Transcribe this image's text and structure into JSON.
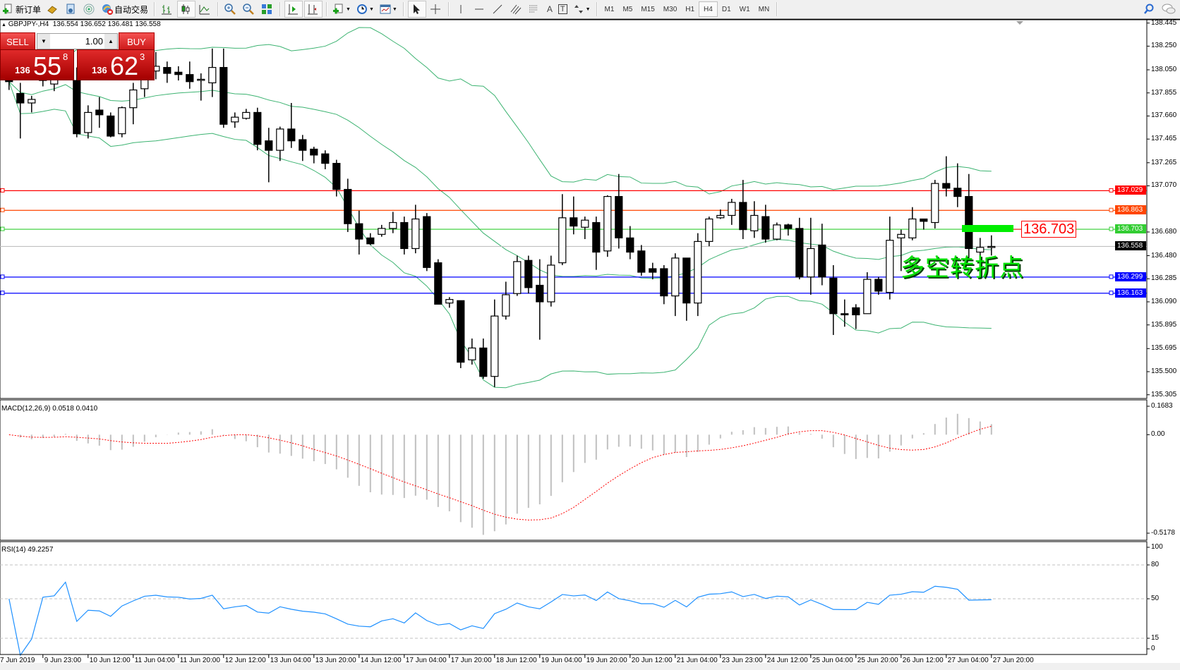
{
  "toolbar": {
    "new_order": "新订单",
    "auto_trading": "自动交易",
    "timeframes": [
      "M1",
      "M5",
      "M15",
      "M30",
      "H1",
      "H4",
      "D1",
      "W1",
      "MN"
    ],
    "active_timeframe": "H4",
    "text_tool": "A",
    "label_tool": "T"
  },
  "chart": {
    "symbol": "GBPJPY-,H4",
    "open": "136.554",
    "high": "136.652",
    "low": "136.481",
    "close": "136.558"
  },
  "trade_panel": {
    "sell_label": "SELL",
    "buy_label": "BUY",
    "lot": "1.00",
    "sell_price": {
      "prefix": "136",
      "main": "55",
      "sup": "8"
    },
    "buy_price": {
      "prefix": "136",
      "main": "62",
      "sup": "3"
    }
  },
  "annotation": {
    "text": "多空转折点",
    "price_label": "136.703",
    "rect_color": "#00ee00"
  },
  "chart_data": {
    "type": "candlestick",
    "symbol": "GBPJPY",
    "timeframe": "H4",
    "grid": false,
    "ylim": [
      135.305,
      138.445
    ],
    "price_ticks": [
      "138.445",
      "138.250",
      "138.050",
      "137.855",
      "137.660",
      "137.465",
      "137.265",
      "137.070",
      "136.680",
      "136.480",
      "136.285",
      "136.090",
      "135.895",
      "135.695",
      "135.500",
      "135.305"
    ],
    "time_labels": [
      "7 Jun 2019",
      "9 Jun 23:00",
      "10 Jun 12:00",
      "11 Jun 04:00",
      "11 Jun 20:00",
      "12 Jun 12:00",
      "13 Jun 04:00",
      "13 Jun 20:00",
      "14 Jun 12:00",
      "17 Jun 04:00",
      "17 Jun 20:00",
      "18 Jun 12:00",
      "19 Jun 04:00",
      "19 Jun 20:00",
      "20 Jun 12:00",
      "21 Jun 04:00",
      "23 Jun 23:00",
      "24 Jun 12:00",
      "25 Jun 04:00",
      "25 Jun 20:00",
      "26 Jun 12:00",
      "27 Jun 04:00",
      "27 Jun 20:00"
    ],
    "ohlc": [
      [
        137.96,
        138.1,
        137.88,
        137.95
      ],
      [
        137.85,
        137.94,
        137.47,
        137.77
      ],
      [
        137.77,
        137.83,
        137.69,
        137.8
      ],
      [
        138.01,
        138.07,
        137.91,
        137.96
      ],
      [
        137.93,
        138.03,
        137.87,
        137.97
      ],
      [
        138.01,
        138.15,
        137.99,
        138.1
      ],
      [
        137.96,
        138.07,
        137.48,
        137.51
      ],
      [
        137.52,
        137.75,
        137.47,
        137.69
      ],
      [
        137.71,
        137.82,
        137.56,
        137.67
      ],
      [
        137.66,
        137.69,
        137.48,
        137.49
      ],
      [
        137.51,
        137.74,
        137.48,
        137.73
      ],
      [
        137.73,
        137.94,
        137.59,
        137.88
      ],
      [
        137.89,
        138.13,
        137.82,
        138.04
      ],
      [
        138.04,
        138.2,
        137.97,
        138.08
      ],
      [
        138.07,
        138.12,
        137.94,
        138.02
      ],
      [
        138.03,
        138.08,
        137.96,
        138.01
      ],
      [
        138.01,
        138.12,
        137.89,
        137.95
      ],
      [
        137.97,
        138.02,
        137.79,
        137.97
      ],
      [
        137.94,
        138.23,
        137.82,
        138.07
      ],
      [
        138.07,
        138.23,
        137.56,
        137.59
      ],
      [
        137.61,
        137.69,
        137.56,
        137.65
      ],
      [
        137.64,
        137.72,
        137.63,
        137.69
      ],
      [
        137.69,
        137.73,
        137.37,
        137.42
      ],
      [
        137.45,
        137.56,
        137.1,
        137.37
      ],
      [
        137.37,
        137.57,
        137.28,
        137.55
      ],
      [
        137.55,
        137.77,
        137.39,
        137.45
      ],
      [
        137.46,
        137.5,
        137.28,
        137.37
      ],
      [
        137.38,
        137.4,
        137.26,
        137.33
      ],
      [
        137.34,
        137.37,
        137.21,
        137.26
      ],
      [
        137.26,
        137.29,
        136.98,
        137.04
      ],
      [
        137.04,
        137.13,
        136.68,
        136.75
      ],
      [
        136.75,
        136.86,
        136.49,
        136.62
      ],
      [
        136.63,
        136.67,
        136.57,
        136.58
      ],
      [
        136.66,
        136.74,
        136.64,
        136.71
      ],
      [
        136.71,
        136.85,
        136.67,
        136.76
      ],
      [
        136.76,
        136.81,
        136.49,
        136.54
      ],
      [
        136.54,
        136.91,
        136.5,
        136.79
      ],
      [
        136.81,
        136.84,
        136.35,
        136.38
      ],
      [
        136.42,
        136.45,
        136.07,
        136.07
      ],
      [
        136.08,
        136.13,
        136.04,
        136.11
      ],
      [
        136.1,
        136.1,
        135.53,
        135.58
      ],
      [
        135.6,
        135.78,
        135.56,
        135.7
      ],
      [
        135.7,
        135.78,
        135.44,
        135.46
      ],
      [
        135.46,
        136.11,
        135.37,
        135.97
      ],
      [
        135.97,
        136.26,
        135.94,
        136.15
      ],
      [
        136.16,
        136.48,
        136.14,
        136.43
      ],
      [
        136.44,
        136.48,
        136.16,
        136.21
      ],
      [
        136.23,
        136.45,
        135.77,
        136.09
      ],
      [
        136.09,
        136.48,
        136.05,
        136.4
      ],
      [
        136.42,
        137.0,
        136.4,
        136.8
      ],
      [
        136.8,
        136.98,
        136.66,
        136.73
      ],
      [
        136.72,
        136.81,
        136.62,
        136.78
      ],
      [
        136.76,
        136.81,
        136.36,
        136.51
      ],
      [
        136.52,
        136.99,
        136.47,
        136.98
      ],
      [
        136.98,
        137.17,
        136.54,
        136.63
      ],
      [
        136.63,
        136.73,
        136.45,
        136.51
      ],
      [
        136.52,
        136.57,
        136.31,
        136.34
      ],
      [
        136.37,
        136.42,
        136.28,
        136.34
      ],
      [
        136.37,
        136.4,
        136.07,
        136.14
      ],
      [
        136.14,
        136.5,
        135.97,
        136.46
      ],
      [
        136.46,
        136.46,
        135.93,
        136.08
      ],
      [
        136.08,
        136.67,
        135.97,
        136.6
      ],
      [
        136.6,
        136.81,
        136.56,
        136.79
      ],
      [
        136.8,
        136.87,
        136.79,
        136.82
      ],
      [
        136.82,
        136.96,
        136.74,
        136.93
      ],
      [
        136.93,
        137.12,
        136.62,
        136.7
      ],
      [
        136.69,
        136.94,
        136.63,
        136.82
      ],
      [
        136.81,
        136.91,
        136.59,
        136.62
      ],
      [
        136.62,
        136.76,
        136.61,
        136.74
      ],
      [
        136.74,
        136.75,
        136.65,
        136.71
      ],
      [
        136.71,
        136.8,
        136.28,
        136.3
      ],
      [
        136.3,
        136.8,
        136.15,
        136.54
      ],
      [
        136.57,
        136.75,
        136.23,
        136.3
      ],
      [
        136.29,
        136.4,
        135.81,
        135.99
      ],
      [
        135.99,
        136.11,
        135.88,
        135.98
      ],
      [
        136.04,
        136.07,
        135.86,
        135.98
      ],
      [
        135.99,
        136.34,
        135.99,
        136.28
      ],
      [
        136.28,
        136.3,
        136.15,
        136.18
      ],
      [
        136.17,
        136.81,
        136.11,
        136.61
      ],
      [
        136.63,
        136.7,
        136.35,
        136.66
      ],
      [
        136.63,
        136.89,
        136.61,
        136.79
      ],
      [
        136.79,
        136.79,
        136.7,
        136.77
      ],
      [
        136.76,
        137.12,
        136.71,
        137.09
      ],
      [
        137.09,
        137.32,
        136.98,
        137.05
      ],
      [
        137.05,
        137.26,
        136.89,
        136.98
      ],
      [
        136.98,
        137.17,
        136.45,
        136.54
      ],
      [
        136.51,
        136.63,
        136.48,
        136.55
      ],
      [
        136.554,
        136.652,
        136.481,
        136.558
      ]
    ],
    "bollinger": {
      "period": 20,
      "deviations": 2,
      "color": "#3cb371"
    },
    "hlines": [
      {
        "price": "137.029",
        "color": "#ff0000"
      },
      {
        "price": "136.863",
        "color": "#ff4500"
      },
      {
        "price": "136.703",
        "color": "#32cd32"
      },
      {
        "price": "136.558",
        "color": "#000000",
        "line_color": "#c0c0c0",
        "bid": true
      },
      {
        "price": "136.299",
        "color": "#0000ff"
      },
      {
        "price": "136.163",
        "color": "#0000ff"
      }
    ],
    "macd": {
      "label": "MACD(12,26,9) 0.0518 0.0410",
      "fast": 12,
      "slow": 26,
      "signal": 9,
      "ticks": [
        "0.1683",
        "0.00",
        "-0.5178"
      ],
      "range": [
        -0.5178,
        0.1683
      ],
      "hist_color": "#c0c0c0",
      "signal_color": "#ff0000"
    },
    "rsi": {
      "label": "RSI(14) 49.2257",
      "period": 14,
      "ticks": [
        "100",
        "80",
        "50",
        "15",
        "0"
      ],
      "levels": [
        80,
        50,
        15
      ],
      "color": "#1e90ff"
    }
  }
}
